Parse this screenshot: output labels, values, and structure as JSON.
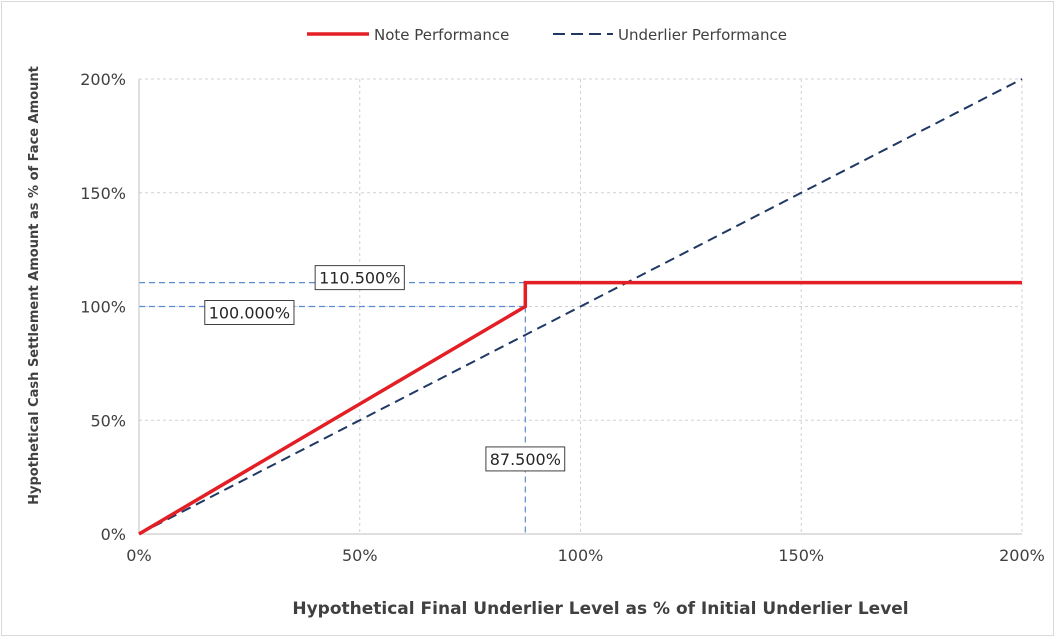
{
  "chart_data": {
    "type": "line",
    "legend_position": "top-center",
    "grid": true,
    "xlabel": "Hypothetical Final Underlier Level as % of Initial Underlier Level",
    "ylabel": "Hypothetical Cash Settlement Amount as % of Face Amount",
    "xlim": [
      0,
      200
    ],
    "ylim": [
      0,
      200
    ],
    "x_ticks": [
      0,
      50,
      100,
      150,
      200
    ],
    "y_ticks": [
      0,
      50,
      100,
      150,
      200
    ],
    "x_tick_labels": [
      "0%",
      "50%",
      "100%",
      "150%",
      "200%"
    ],
    "y_tick_labels": [
      "0%",
      "50%",
      "100%",
      "150%",
      "200%"
    ],
    "series": [
      {
        "name": "Note Performance",
        "color": "#e31e24",
        "style": "solid",
        "points": [
          [
            0,
            0
          ],
          [
            87.5,
            100
          ],
          [
            87.5,
            110.5
          ],
          [
            200,
            110.5
          ]
        ]
      },
      {
        "name": "Underlier Performance",
        "color": "#1f3864",
        "style": "dashed",
        "points": [
          [
            0,
            0
          ],
          [
            200,
            200
          ]
        ]
      }
    ],
    "reference_lines": {
      "color": "#5b8bd0",
      "horizontal": [
        110.5,
        100
      ],
      "vertical": [
        87.5
      ]
    },
    "annotations": [
      {
        "text": "110.500%",
        "x": 50,
        "y": 110.5
      },
      {
        "text": "100.000%",
        "x": 25,
        "y": 100
      },
      {
        "text": "87.500%",
        "x": 87.5,
        "y": 33
      }
    ]
  }
}
